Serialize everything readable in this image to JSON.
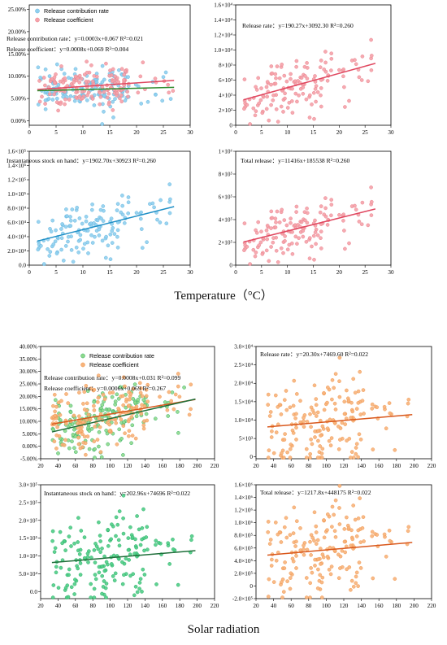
{
  "section_labels": {
    "top": "Temperature（°C）",
    "bottom": "Solar radiation"
  },
  "colors": {
    "blue_point": "#8fcfee",
    "blue_point_edge": "#5aaedb",
    "blue_line": "#1f8fc6",
    "pink_point": "#f5a1a9",
    "pink_point_edge": "#e67b86",
    "pink_line": "#e04860",
    "orange_point": "#f7b37a",
    "orange_point_edge": "#ee8f44",
    "orange_line": "#d9581c",
    "green_point": "#4fcd86",
    "green_point_edge": "#1ea85e",
    "green_line": "#2e8b2e",
    "green_point_light": "#8ed88a",
    "green_line_dark": "#1f6f3a"
  },
  "chart_data": [
    {
      "id": "t_rates",
      "type": "scatter",
      "xlim": [
        0,
        30
      ],
      "xticks": [
        0,
        5,
        10,
        15,
        20,
        25,
        30
      ],
      "ylim": [
        -0.01,
        0.26
      ],
      "yticks": [
        0,
        0.05,
        0.1,
        0.15,
        0.2,
        0.25
      ],
      "yticklabels": [
        "0.00%",
        "5.00%",
        "10.00%",
        "15.00%",
        "20.00%",
        "25.00%"
      ],
      "legend": [
        "Release contribution rate",
        "Release coefficient"
      ],
      "equations": [
        "Release contribution rate：y=0.0003x+0.067  R²=0.021",
        "Release coefficient：y=0.0008x+0.069    R²=0.004"
      ],
      "series": [
        {
          "name": "Release contribution rate",
          "color_key": "blue",
          "slope": 0.0003,
          "intercept": 0.067,
          "x_range": [
            1.5,
            27
          ],
          "y_center": 0.07,
          "y_spread": 0.022,
          "seed": 11,
          "n": 150
        },
        {
          "name": "Release coefficient",
          "color_key": "pink",
          "slope": 0.0008,
          "intercept": 0.069,
          "x_range": [
            1.5,
            27
          ],
          "y_center": 0.077,
          "y_spread": 0.02,
          "seed": 23,
          "n": 150
        }
      ],
      "fit_lines": [
        {
          "slope": 0.0008,
          "intercept": 0.069,
          "x_range": [
            1.5,
            27
          ],
          "color_key": "pink_line"
        },
        {
          "slope": 0.0003,
          "intercept": 0.067,
          "x_range": [
            1.5,
            27
          ],
          "color_key": "green_line"
        }
      ]
    },
    {
      "id": "t_release_rate",
      "type": "scatter",
      "xlim": [
        0,
        30
      ],
      "xticks": [
        0,
        5,
        10,
        15,
        20,
        25,
        30
      ],
      "ylim": [
        0,
        16000
      ],
      "yticks": [
        0,
        2000,
        4000,
        6000,
        8000,
        10000,
        12000,
        14000,
        16000
      ],
      "yticklabels": [
        "0",
        "2×10³",
        "4×10³",
        "6×10³",
        "8×10³",
        "1.0×10⁴",
        "1.2×10⁴",
        "1.4×10⁴",
        "1.6×10⁴"
      ],
      "equations": [
        "Release rate：y=190.27x+3092.30 R²=0.260"
      ],
      "series": [
        {
          "name": "Release rate",
          "color_key": "pink",
          "slope": 190.27,
          "intercept": 3092.3,
          "x_range": [
            1.5,
            27
          ],
          "y_spread": 1900,
          "seed": 37,
          "n": 140
        }
      ],
      "fit_lines": [
        {
          "slope": 190.27,
          "intercept": 3092.3,
          "x_range": [
            1.5,
            27
          ],
          "color_key": "pink_line"
        }
      ]
    },
    {
      "id": "t_stock",
      "type": "scatter",
      "xlim": [
        0,
        30
      ],
      "xticks": [
        0,
        5,
        10,
        15,
        20,
        25,
        30
      ],
      "ylim": [
        0,
        160000
      ],
      "yticks": [
        0,
        20000,
        40000,
        60000,
        80000,
        100000,
        120000,
        140000,
        160000
      ],
      "yticklabels": [
        "0.0",
        "2.0×10⁴",
        "4.0×10⁴",
        "6.0×10⁴",
        "8.0×10⁴",
        "1.0×10⁵",
        "1.2×10⁵",
        "1.4×10⁵",
        "1.6×10⁵"
      ],
      "equations": [
        "Instantaneous stock on hand：y=1902.70x+30923 R²=0.260"
      ],
      "series": [
        {
          "name": "Instantaneous stock on hand",
          "color_key": "blue",
          "slope": 1902.7,
          "intercept": 30923,
          "x_range": [
            1.5,
            27
          ],
          "y_spread": 19000,
          "seed": 37,
          "n": 140
        }
      ],
      "fit_lines": [
        {
          "slope": 1902.7,
          "intercept": 30923,
          "x_range": [
            1.5,
            27
          ],
          "color_key": "blue_line"
        }
      ]
    },
    {
      "id": "t_total",
      "type": "scatter",
      "xlim": [
        0,
        30
      ],
      "xticks": [
        0,
        5,
        10,
        15,
        20,
        25,
        30
      ],
      "ylim": [
        0,
        1000000
      ],
      "yticks": [
        0,
        200000,
        400000,
        600000,
        800000,
        1000000
      ],
      "yticklabels": [
        "0",
        "2×10⁵",
        "4×10⁵",
        "6×10⁵",
        "8×10⁵",
        "1×10⁶"
      ],
      "equations": [
        "Total release：y=11416x+185538 R²=0.260"
      ],
      "series": [
        {
          "name": "Total release",
          "color_key": "pink",
          "slope": 11416,
          "intercept": 185538,
          "x_range": [
            1.5,
            27
          ],
          "y_spread": 115000,
          "seed": 37,
          "n": 140
        }
      ],
      "fit_lines": [
        {
          "slope": 11416,
          "intercept": 185538,
          "x_range": [
            1.5,
            27
          ],
          "color_key": "pink_line"
        }
      ]
    },
    {
      "id": "s_rates",
      "type": "scatter",
      "xlim": [
        20,
        220
      ],
      "xticks": [
        20,
        40,
        60,
        80,
        100,
        120,
        140,
        160,
        180,
        200,
        220
      ],
      "ylim": [
        -0.05,
        0.4
      ],
      "yticks": [
        -0.05,
        0,
        0.05,
        0.1,
        0.15,
        0.2,
        0.25,
        0.3,
        0.35,
        0.4
      ],
      "yticklabels": [
        "-5.00%",
        "0.00%",
        "5.00%",
        "10.00%",
        "15.00%",
        "20.00%",
        "25.00%",
        "30.00%",
        "35.00%",
        "40.00%"
      ],
      "legend": [
        "Release contribution rate",
        "Release coefficient"
      ],
      "equations": [
        "Release contribution rate：y=0.0008x+0.031 R²=0.099",
        "Release coefficient：y=0.0006x+0.069 R²=0.267"
      ],
      "series": [
        {
          "name": "Release contribution rate",
          "color_key": "green_light",
          "slope": 0.0008,
          "intercept": 0.031,
          "x_range": [
            33,
            198
          ],
          "y_spread": 0.055,
          "seed": 53,
          "n": 170
        },
        {
          "name": "Release coefficient",
          "color_key": "orange",
          "slope": 0.0006,
          "intercept": 0.069,
          "x_range": [
            33,
            198
          ],
          "y_spread": 0.06,
          "seed": 71,
          "n": 170
        }
      ],
      "fit_lines": [
        {
          "slope": 0.0006,
          "intercept": 0.069,
          "x_range": [
            33,
            198
          ],
          "color_key": "orange_line"
        },
        {
          "slope": 0.0008,
          "intercept": 0.031,
          "x_range": [
            33,
            198
          ],
          "color_key": "green_line_dark"
        }
      ]
    },
    {
      "id": "s_release_rate",
      "type": "scatter",
      "xlim": [
        20,
        220
      ],
      "xticks": [
        20,
        40,
        60,
        80,
        100,
        120,
        140,
        160,
        180,
        200,
        220
      ],
      "ylim": [
        -500,
        30000
      ],
      "yticks": [
        0,
        5000,
        10000,
        15000,
        20000,
        25000,
        30000
      ],
      "yticklabels": [
        "0",
        "5×10³",
        "1.0×10⁴",
        "1.5×10⁴",
        "2.0×10⁴",
        "2.5×10⁴",
        "3.0×10⁴"
      ],
      "equations": [
        "Release rate：y=20.30x+7469.60 R²=0.022"
      ],
      "series": [
        {
          "name": "Release rate",
          "color_key": "orange",
          "slope": 20.3,
          "intercept": 7469.6,
          "x_range": [
            33,
            198
          ],
          "y_spread": 6500,
          "seed": 91,
          "n": 175
        }
      ],
      "fit_lines": [
        {
          "slope": 20.3,
          "intercept": 7469.6,
          "x_range": [
            33,
            198
          ],
          "color_key": "orange_line"
        }
      ]
    },
    {
      "id": "s_stock",
      "type": "scatter",
      "xlim": [
        20,
        220
      ],
      "xticks": [
        20,
        40,
        60,
        80,
        100,
        120,
        140,
        160,
        180,
        200,
        220
      ],
      "ylim": [
        -20000,
        300000
      ],
      "yticks": [
        0,
        50000,
        100000,
        150000,
        200000,
        250000,
        300000
      ],
      "yticklabels": [
        "0.0",
        "5.0×10⁴",
        "1.0×10⁵",
        "1.5×10⁵",
        "2.0×10⁵",
        "2.5×10⁵",
        "3.0×10⁵"
      ],
      "equations": [
        "Instantaneous stock on hand：y=202.96x+74696 R²=0.022"
      ],
      "series": [
        {
          "name": "Instantaneous stock on hand",
          "color_key": "green",
          "slope": 202.96,
          "intercept": 74696,
          "x_range": [
            33,
            198
          ],
          "y_spread": 65000,
          "seed": 91,
          "n": 175
        }
      ],
      "fit_lines": [
        {
          "slope": 202.96,
          "intercept": 74696,
          "x_range": [
            33,
            198
          ],
          "color_key": "green_line_dark"
        }
      ]
    },
    {
      "id": "s_total",
      "type": "scatter",
      "xlim": [
        20,
        220
      ],
      "xticks": [
        20,
        40,
        60,
        80,
        100,
        120,
        140,
        160,
        180,
        200,
        220
      ],
      "ylim": [
        -200000,
        1600000
      ],
      "yticks": [
        -200000,
        0,
        200000,
        400000,
        600000,
        800000,
        1000000,
        1200000,
        1400000,
        1600000
      ],
      "yticklabels": [
        "-2.0×10⁵",
        "0",
        "2.0×10⁵",
        "4.0×10⁵",
        "6.0×10⁵",
        "8.0×10⁵",
        "1.0×10⁶",
        "1.2×10⁶",
        "1.4×10⁶",
        "1.6×10⁶"
      ],
      "equations": [
        "Total release：y=1217.8x+448175 R²=0.022"
      ],
      "series": [
        {
          "name": "Total release",
          "color_key": "orange",
          "slope": 1217.8,
          "intercept": 448175,
          "x_range": [
            33,
            198
          ],
          "y_spread": 390000,
          "seed": 91,
          "n": 175
        }
      ],
      "fit_lines": [
        {
          "slope": 1217.8,
          "intercept": 448175,
          "x_range": [
            33,
            198
          ],
          "color_key": "orange_line"
        }
      ]
    }
  ]
}
